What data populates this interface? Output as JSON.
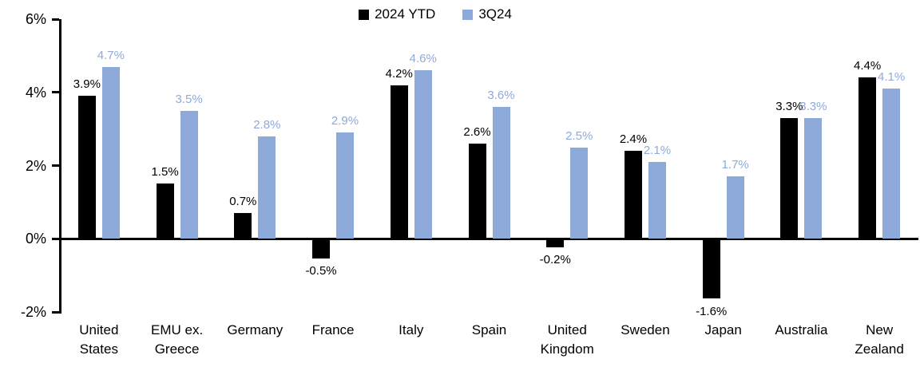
{
  "chart_data": {
    "type": "bar",
    "title": "",
    "categories": [
      "United\nStates",
      "EMU ex.\nGreece",
      "Germany",
      "France",
      "Italy",
      "Spain",
      "United\nKingdom",
      "Sweden",
      "Japan",
      "Australia",
      "New\nZealand"
    ],
    "series": [
      {
        "name": "2024 YTD",
        "color": "#000000",
        "values": [
          3.9,
          1.5,
          0.7,
          -0.5,
          4.2,
          2.6,
          -0.2,
          2.4,
          -1.6,
          3.3,
          4.4
        ],
        "labels": [
          "3.9%",
          "1.5%",
          "0.7%",
          "-0.5%",
          "4.2%",
          "2.6%",
          "-0.2%",
          "2.4%",
          "-1.6%",
          "3.3%",
          "4.4%"
        ]
      },
      {
        "name": "3Q24",
        "color": "#8EAADB",
        "values": [
          4.7,
          3.5,
          2.8,
          2.9,
          4.6,
          3.6,
          2.5,
          2.1,
          1.7,
          3.3,
          4.1
        ],
        "labels": [
          "4.7%",
          "3.5%",
          "2.8%",
          "2.9%",
          "4.6%",
          "3.6%",
          "2.5%",
          "2.1%",
          "1.7%",
          "3.3%",
          "4.1%"
        ]
      }
    ],
    "y_axis": {
      "min": -2,
      "max": 6,
      "ticks": [
        {
          "value": 6,
          "label": "6%"
        },
        {
          "value": 4,
          "label": "4%"
        },
        {
          "value": 2,
          "label": "2%"
        },
        {
          "value": 0,
          "label": "0%"
        },
        {
          "value": -2,
          "label": "-2%"
        }
      ]
    },
    "legend_position": "top-center",
    "grid": "off",
    "axis_color": "#000000",
    "background": "#FFFFFF"
  }
}
